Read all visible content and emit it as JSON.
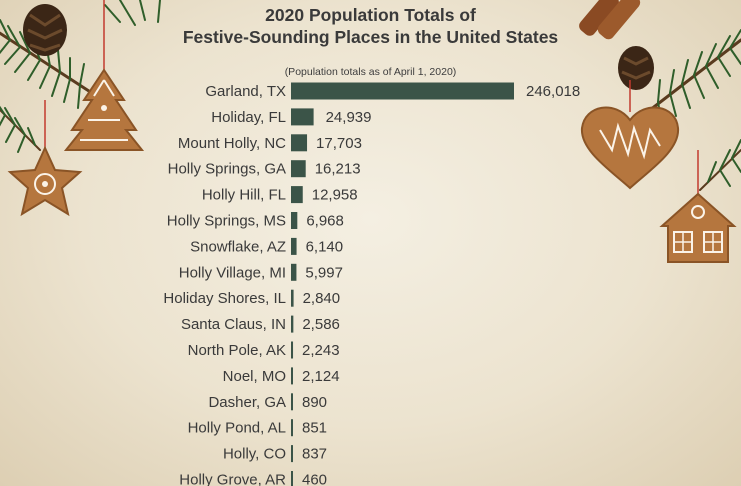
{
  "header": {
    "title_line1": "2020 Population Totals of",
    "title_line2": "Festive-Sounding Places in the United States",
    "subtitle": "(Population totals as of April 1, 2020)"
  },
  "colors": {
    "bar": "#3b5448",
    "text": "#3a3a3a",
    "background": "#efe7d6"
  },
  "decorations": [
    "pine-branch",
    "pine-cone",
    "gingerbread-tree-cookie",
    "gingerbread-star-cookie",
    "cinnamon-sticks",
    "gingerbread-heart-cookie",
    "gingerbread-house-cookie"
  ],
  "chart_data": {
    "type": "bar",
    "orientation": "horizontal",
    "title": "2020 Population Totals of Festive-Sounding Places in the United States",
    "subtitle": "(Population totals as of April 1, 2020)",
    "categories": [
      "Garland, TX",
      "Holiday, FL",
      "Mount Holly, NC",
      "Holly Springs, GA",
      "Holly Hill, FL",
      "Holly Springs, MS",
      "Snowflake, AZ",
      "Holly Village, MI",
      "Holiday Shores, IL",
      "Santa Claus, IN",
      "North Pole, AK",
      "Noel, MO",
      "Dasher, GA",
      "Holly Pond, AL",
      "Holly, CO",
      "Holly Grove, AR"
    ],
    "values": [
      246018,
      24939,
      17703,
      16213,
      12958,
      6968,
      6140,
      5997,
      2840,
      2586,
      2243,
      2124,
      890,
      851,
      837,
      460
    ],
    "value_labels": [
      "246,018",
      "24,939",
      "17,703",
      "16,213",
      "12,958",
      "6,968",
      "6,140",
      "5,997",
      "2,840",
      "2,586",
      "2,243",
      "2,124",
      "890",
      "851",
      "837",
      "460"
    ],
    "xlim": [
      0,
      246018
    ],
    "grid": false,
    "legend": "none"
  }
}
